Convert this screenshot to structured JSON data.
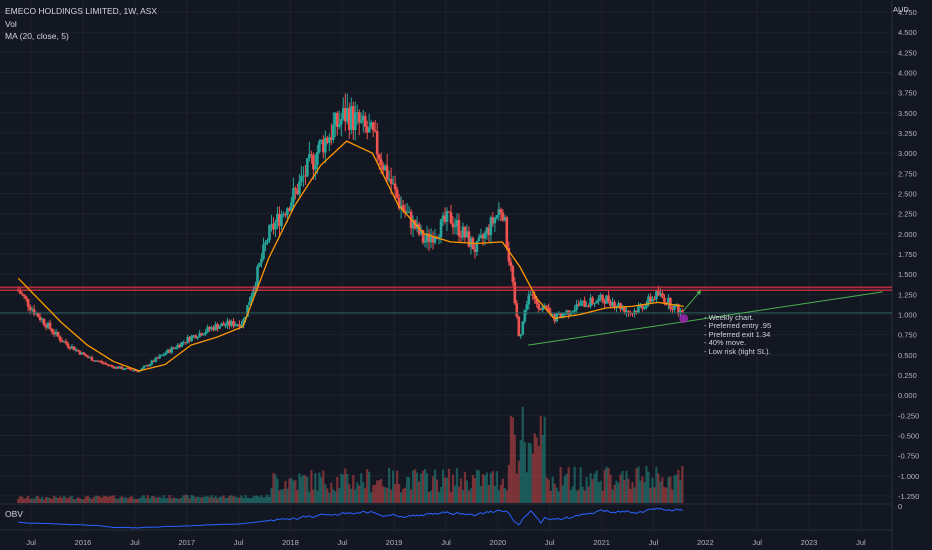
{
  "header": {
    "title": "EMECO HOLDINGS LIMITED, 1W, ASX",
    "vol_label": "Vol",
    "ma_label": "MA (20, close, 5)",
    "obv_label": "OBV"
  },
  "notes": [
    "- Weekly chart.",
    "- Preferred entry .95",
    "- Preferred exit 1.34",
    "- 40% move.",
    "- Low risk (tight SL)."
  ],
  "colors": {
    "background": "#131722",
    "up": "#26a69a",
    "down": "#ef5350",
    "ma": "#ff9800",
    "obv": "#2962ff",
    "support_line": "#4caf50",
    "resistance": "#f23645",
    "marker": "#9c27b0"
  },
  "chart_data": {
    "type": "candlestick",
    "title": "EMECO HOLDINGS LIMITED, 1W, ASX",
    "currency": "AUD",
    "y_ticks": [
      "4.750",
      "4.500",
      "4.250",
      "4.000",
      "3.750",
      "3.500",
      "3.250",
      "3.000",
      "2.750",
      "2.500",
      "2.250",
      "2.000",
      "1.750",
      "1.500",
      "1.250",
      "1.000",
      "0.750",
      "0.500",
      "0.250",
      "0.000",
      "-0.250",
      "-0.500",
      "-0.750",
      "-1.000",
      "-1.250"
    ],
    "x_ticks": [
      "Jul",
      "2016",
      "Jul",
      "2017",
      "Jul",
      "2018",
      "Jul",
      "2019",
      "Jul",
      "2020",
      "Jul",
      "2021",
      "Jul",
      "2022",
      "Jul",
      "2023",
      "Jul"
    ],
    "ylim": [
      -1.35,
      4.85
    ],
    "price_series": {
      "name": "EMECO HOLDINGS LIMITED",
      "x": [
        "2015-05",
        "2015-07",
        "2015-10",
        "2016-01",
        "2016-04",
        "2016-07",
        "2016-10",
        "2017-01",
        "2017-04",
        "2017-07",
        "2017-10",
        "2018-01",
        "2018-04",
        "2018-07",
        "2018-10",
        "2019-01",
        "2019-04",
        "2019-07",
        "2019-10",
        "2020-01",
        "2020-03",
        "2020-04",
        "2020-07",
        "2020-10",
        "2021-01",
        "2021-04",
        "2021-07",
        "2021-10"
      ],
      "values": [
        1.3,
        1.02,
        0.68,
        0.47,
        0.35,
        0.3,
        0.52,
        0.72,
        0.86,
        0.9,
        2.0,
        2.5,
        3.1,
        3.5,
        3.2,
        2.4,
        1.9,
        2.2,
        1.8,
        2.35,
        0.7,
        1.25,
        0.95,
        1.12,
        1.2,
        1.02,
        1.25,
        1.01
      ]
    },
    "ma_series": {
      "name": "MA (20, close, 5)",
      "x": [
        "2015-05",
        "2015-10",
        "2016-01",
        "2016-04",
        "2016-07",
        "2016-10",
        "2017-01",
        "2017-04",
        "2017-07",
        "2017-10",
        "2018-01",
        "2018-04",
        "2018-07",
        "2018-10",
        "2019-01",
        "2019-04",
        "2019-07",
        "2019-10",
        "2020-01",
        "2020-03",
        "2020-05",
        "2020-07",
        "2020-10",
        "2021-01",
        "2021-04",
        "2021-07",
        "2021-10"
      ],
      "values": [
        1.45,
        0.9,
        0.62,
        0.42,
        0.3,
        0.38,
        0.62,
        0.72,
        0.85,
        1.7,
        2.35,
        2.85,
        3.15,
        3.0,
        2.35,
        2.0,
        1.9,
        1.88,
        1.9,
        1.6,
        1.2,
        0.95,
        1.0,
        1.08,
        1.1,
        1.15,
        1.1
      ]
    },
    "levels": {
      "resistance_top": 1.34,
      "resistance_bottom": 1.3,
      "current_price": 1.02
    },
    "support_trendline": {
      "x": [
        "2020-04",
        "2023-09"
      ],
      "values": [
        0.62,
        1.28
      ]
    },
    "projection_arrow": {
      "x": [
        "2021-10",
        "2021-12"
      ],
      "values": [
        1.05,
        1.3
      ]
    },
    "entry_marker": {
      "x": "2021-10",
      "value": 0.95
    }
  }
}
